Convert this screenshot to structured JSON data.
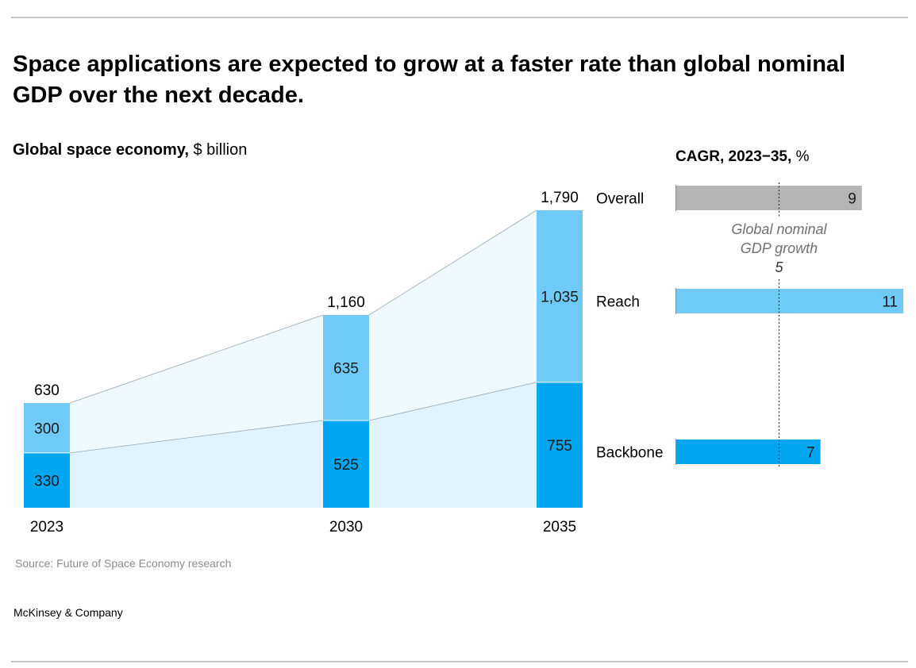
{
  "headline": "Space applications are expected to grow at a faster rate than global nominal GDP over the next decade.",
  "left_title": {
    "bold": "Global space economy,",
    "unit": "$ billion"
  },
  "right_title": {
    "bold": "CAGR, 2023−35,",
    "unit": "%"
  },
  "source": "Source: Future of Space Economy research",
  "brand": "McKinsey & Company",
  "colors": {
    "backbone": "#00a6ef",
    "reach": "#6fcaf7",
    "overall": "#b4b4b4",
    "area_backbone": "#e1f3fc",
    "area_reach": "#f0f9fe",
    "connector": "#9aa9b1",
    "gdp_line": "#333333",
    "annotation": "#707070"
  },
  "chart_data": [
    {
      "type": "bar",
      "stacked": true,
      "categories": [
        "2023",
        "2030",
        "2035"
      ],
      "series": [
        {
          "name": "Backbone",
          "values": [
            330,
            525,
            755
          ]
        },
        {
          "name": "Reach",
          "values": [
            300,
            635,
            1035
          ]
        }
      ],
      "totals": [
        "630",
        "1,160",
        "1,790"
      ],
      "labels": {
        "Backbone": [
          "330",
          "525",
          "755"
        ],
        "Reach": [
          "300",
          "635",
          "1,035"
        ]
      },
      "title": "Global space economy,",
      "ylabel": "$ billion",
      "ylim": [
        0,
        1790
      ],
      "grid": false
    },
    {
      "type": "bar",
      "orientation": "horizontal",
      "categories": [
        "Overall",
        "Reach",
        "Backbone"
      ],
      "values": [
        9,
        11,
        7
      ],
      "value_labels": [
        "9",
        "11",
        "7"
      ],
      "title": "CAGR, 2023−35,",
      "xlabel": "%",
      "xlim": [
        0,
        11
      ],
      "reference_line": {
        "value": 5,
        "label_lines": [
          "Global nominal",
          "GDP growth"
        ],
        "value_label": "5"
      },
      "grid": false
    }
  ]
}
